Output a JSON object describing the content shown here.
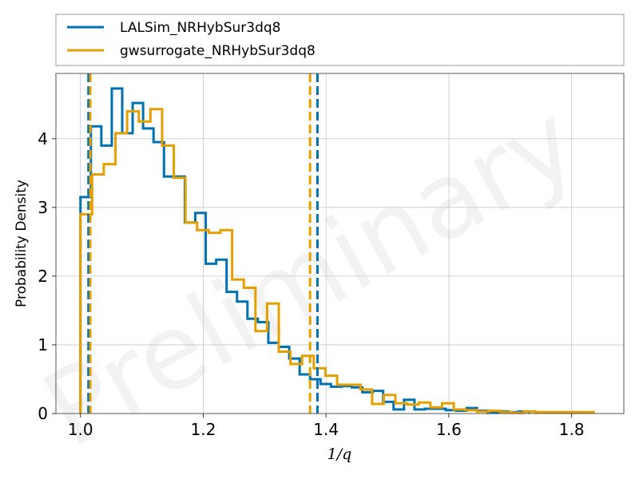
{
  "chart_data": {
    "type": "histogram",
    "xlabel": "1/q",
    "ylabel": "Probability Density",
    "watermark": "Preliminary",
    "xlim": [
      0.96,
      1.885
    ],
    "ylim": [
      0,
      4.95
    ],
    "xticks": [
      1.0,
      1.2,
      1.4,
      1.6,
      1.8
    ],
    "xtick_labels": [
      "1.0",
      "1.2",
      "1.4",
      "1.6",
      "1.8"
    ],
    "yticks": [
      0,
      1,
      2,
      3,
      4
    ],
    "ytick_labels": [
      "0",
      "1",
      "2",
      "3",
      "4"
    ],
    "grid": true,
    "legend_position": "above plot",
    "series": [
      {
        "name": "LALSim_NRHybSur3dq8",
        "color": "#0072b2",
        "bin_edges": [
          1.0,
          1.017,
          1.034,
          1.051,
          1.068,
          1.085,
          1.102,
          1.119,
          1.136,
          1.153,
          1.17,
          1.187,
          1.204,
          1.221,
          1.238,
          1.255,
          1.272,
          1.289,
          1.306,
          1.323,
          1.34,
          1.357,
          1.374,
          1.391,
          1.408,
          1.425,
          1.442,
          1.459,
          1.476,
          1.493,
          1.51,
          1.527,
          1.544,
          1.561,
          1.578,
          1.595,
          1.612,
          1.629,
          1.646,
          1.663,
          1.68,
          1.697,
          1.714,
          1.731
        ],
        "densities": [
          3.15,
          4.18,
          3.9,
          4.73,
          4.08,
          4.52,
          4.15,
          3.95,
          3.45,
          3.45,
          2.78,
          2.92,
          2.18,
          2.24,
          1.77,
          1.63,
          1.38,
          1.33,
          1.03,
          0.97,
          0.8,
          0.57,
          0.5,
          0.43,
          0.39,
          0.4,
          0.38,
          0.31,
          0.33,
          0.17,
          0.06,
          0.2,
          0.06,
          0.07,
          0.07,
          0.05,
          0.04,
          0.08,
          0.04,
          0.01,
          0.03,
          0.02,
          0.03
        ]
      },
      {
        "name": "gwsurrogate_NRHybSur3dq8",
        "color": "#e69f00",
        "bin_edges": [
          1.0,
          1.019,
          1.038,
          1.057,
          1.076,
          1.095,
          1.114,
          1.133,
          1.152,
          1.171,
          1.19,
          1.209,
          1.228,
          1.247,
          1.266,
          1.285,
          1.304,
          1.323,
          1.342,
          1.361,
          1.38,
          1.399,
          1.418,
          1.437,
          1.456,
          1.475,
          1.494,
          1.513,
          1.532,
          1.551,
          1.57,
          1.589,
          1.608,
          1.627,
          1.646,
          1.665,
          1.684,
          1.703,
          1.722,
          1.741,
          1.76,
          1.779,
          1.798,
          1.817,
          1.836
        ],
        "densities": [
          2.9,
          3.48,
          3.63,
          4.08,
          4.4,
          4.25,
          4.43,
          3.9,
          3.43,
          2.78,
          2.67,
          2.63,
          2.67,
          1.95,
          1.83,
          1.2,
          1.6,
          0.9,
          0.72,
          0.84,
          0.66,
          0.55,
          0.42,
          0.42,
          0.35,
          0.14,
          0.27,
          0.15,
          0.13,
          0.16,
          0.09,
          0.15,
          0.06,
          0.05,
          0.03,
          0.04,
          0.02,
          0.01,
          0.03,
          0.02,
          0.02,
          0.02,
          0.02,
          0.02
        ]
      }
    ],
    "vertical_lines": [
      {
        "series": "LALSim_NRHybSur3dq8",
        "x": 1.013,
        "color": "#0072b2"
      },
      {
        "series": "LALSim_NRHybSur3dq8",
        "x": 1.386,
        "color": "#0072b2"
      },
      {
        "series": "gwsurrogate_NRHybSur3dq8",
        "x": 1.016,
        "color": "#e69f00"
      },
      {
        "series": "gwsurrogate_NRHybSur3dq8",
        "x": 1.374,
        "color": "#e69f00"
      }
    ]
  }
}
